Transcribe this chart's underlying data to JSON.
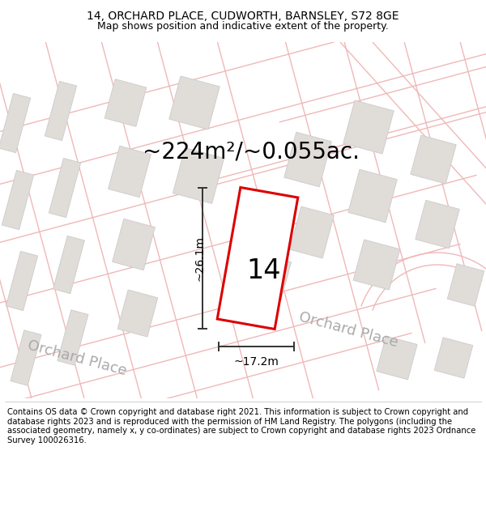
{
  "title_line1": "14, ORCHARD PLACE, CUDWORTH, BARNSLEY, S72 8GE",
  "title_line2": "Map shows position and indicative extent of the property.",
  "area_label": "~224m²/~0.055ac.",
  "number_label": "14",
  "dim_width": "~17.2m",
  "dim_height": "~26.1m",
  "street_label1": "Orchard Place",
  "street_label2": "Orchard Place",
  "footer_text": "Contains OS data © Crown copyright and database right 2021. This information is subject to Crown copyright and database rights 2023 and is reproduced with the permission of HM Land Registry. The polygons (including the associated geometry, namely x, y co-ordinates) are subject to Crown copyright and database rights 2023 Ordnance Survey 100026316.",
  "map_bg": "#ffffff",
  "plot_color_fill": "#ffffff",
  "plot_color_edge": "#dd0000",
  "road_line_color": "#f0b8b8",
  "building_color": "#e0dcd8",
  "building_edge": "#cccccc",
  "dim_line_color": "#333333",
  "street_text_color": "#aaaaaa",
  "title_fontsize": 10,
  "subtitle_fontsize": 9,
  "area_fontsize": 20,
  "number_fontsize": 24,
  "dim_fontsize": 10,
  "street_fontsize": 13,
  "footer_fontsize": 7.2,
  "road_lw": 1.0,
  "building_lw": 0.6,
  "plot_lw": 2.2
}
